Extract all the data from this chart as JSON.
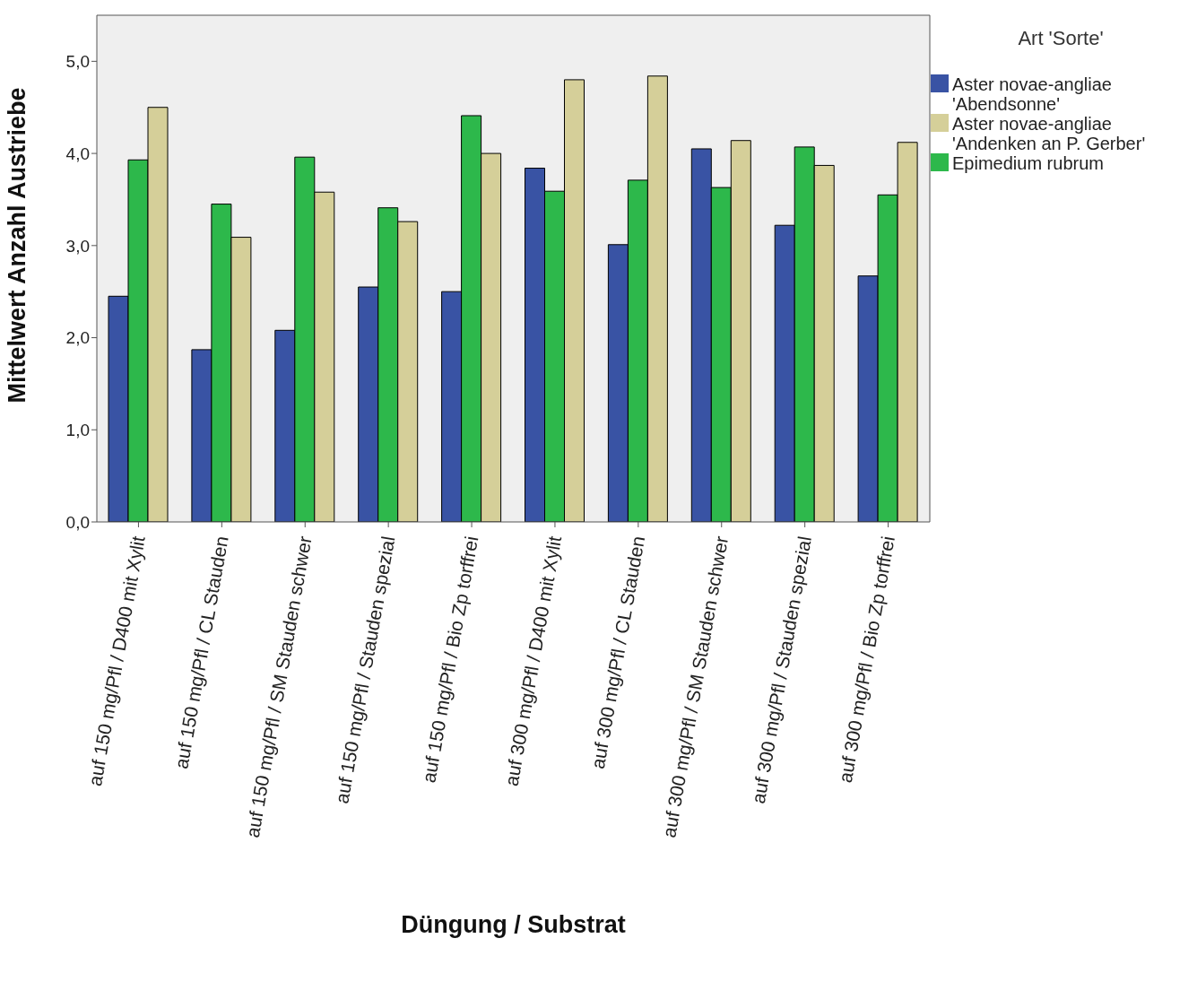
{
  "chart_data": {
    "type": "bar",
    "xlabel": "Düngung / Substrat",
    "ylabel": "Mittelwert Anzahl Austriebe",
    "legend_title": "Art 'Sorte'",
    "legend": "right",
    "grid": false,
    "categories": [
      "auf 150 mg/Pfl / D400 mit Xylit",
      "auf 150 mg/Pfl / CL Stauden",
      "auf 150 mg/Pfl / SM Stauden schwer",
      "auf 150 mg/Pfl / Stauden spezial",
      "auf 150 mg/Pfl / Bio Zp torffrei",
      "auf 300 mg/Pfl / D400 mit Xylit",
      "auf 300 mg/Pfl / CL Stauden",
      "auf 300 mg/Pfl / SM Stauden schwer",
      "auf 300 mg/Pfl / Stauden spezial",
      "auf 300 mg/Pfl / Bio Zp torffrei"
    ],
    "ylim": [
      0,
      5.5
    ],
    "yticks": [
      {
        "value": 0,
        "label": "0,0"
      },
      {
        "value": 1,
        "label": "1,0"
      },
      {
        "value": 2,
        "label": "2,0"
      },
      {
        "value": 3,
        "label": "3,0"
      },
      {
        "value": 4,
        "label": "4,0"
      },
      {
        "value": 5,
        "label": "5,0"
      }
    ],
    "series": [
      {
        "name": "Aster novae-angliae 'Abendsonne'",
        "color": "#3953a4",
        "values": [
          2.45,
          1.87,
          2.08,
          2.55,
          2.5,
          3.84,
          3.01,
          4.05,
          3.22,
          2.67
        ]
      },
      {
        "name": "Epimedium rubrum",
        "color": "#2db84b",
        "values": [
          3.93,
          3.45,
          3.96,
          3.41,
          4.41,
          3.59,
          3.71,
          3.63,
          4.07,
          3.55
        ]
      },
      {
        "name": "Aster novae-angliae 'Andenken an P. Gerber'",
        "color": "#d5cf99",
        "values": [
          4.5,
          3.09,
          3.58,
          3.26,
          4.0,
          4.8,
          4.84,
          4.14,
          3.87,
          4.12
        ]
      }
    ]
  }
}
